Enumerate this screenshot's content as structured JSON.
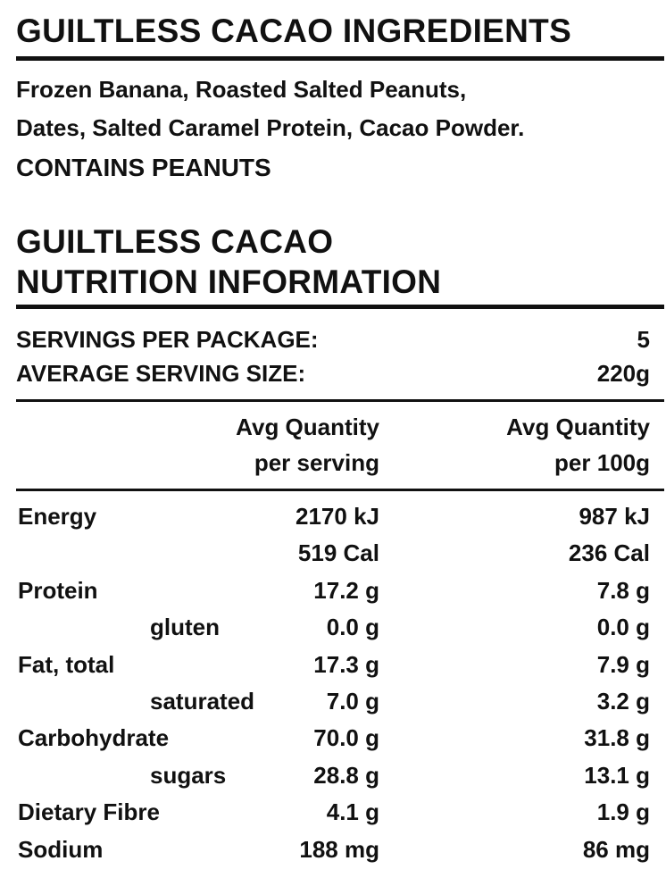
{
  "ingredients": {
    "title": "GUILTLESS CACAO INGREDIENTS",
    "lines": [
      "Frozen Banana, Roasted Salted Peanuts,",
      "Dates, Salted Caramel Protein, Cacao Powder."
    ],
    "allergen": "CONTAINS PEANUTS"
  },
  "nutrition": {
    "title": [
      "GUILTLESS CACAO",
      "NUTRITION INFORMATION"
    ],
    "servings": [
      {
        "label": "SERVINGS PER PACKAGE:",
        "value": "5"
      },
      {
        "label": "AVERAGE SERVING SIZE:",
        "value": "220g"
      }
    ],
    "header": {
      "per_serving": [
        "Avg Quantity",
        "per serving"
      ],
      "per_100g": [
        "Avg Quantity",
        "per 100g"
      ]
    },
    "rows": [
      {
        "label": "Energy",
        "per_serving": "2170 kJ",
        "per_100g": "987 kJ"
      },
      {
        "per_serving": "519 Cal",
        "per_100g": "236 Cal"
      },
      {
        "label": "Protein",
        "per_serving": "17.2 g",
        "per_100g": "7.8 g"
      },
      {
        "sublabel": "gluten",
        "per_serving": "0.0 g",
        "per_100g": "0.0 g"
      },
      {
        "label": "Fat, total",
        "per_serving": "17.3 g",
        "per_100g": "7.9 g"
      },
      {
        "sublabel": "saturated",
        "per_serving": "7.0 g",
        "per_100g": "3.2 g"
      },
      {
        "label": "Carbohydrate",
        "per_serving": "70.0 g",
        "per_100g": "31.8 g"
      },
      {
        "sublabel": "sugars",
        "per_serving": "28.8 g",
        "per_100g": "13.1 g"
      },
      {
        "label": "Dietary Fibre",
        "per_serving": "4.1 g",
        "per_100g": "1.9 g"
      },
      {
        "label": "Sodium",
        "per_serving": "188 mg",
        "per_100g": "86 mg"
      }
    ]
  }
}
